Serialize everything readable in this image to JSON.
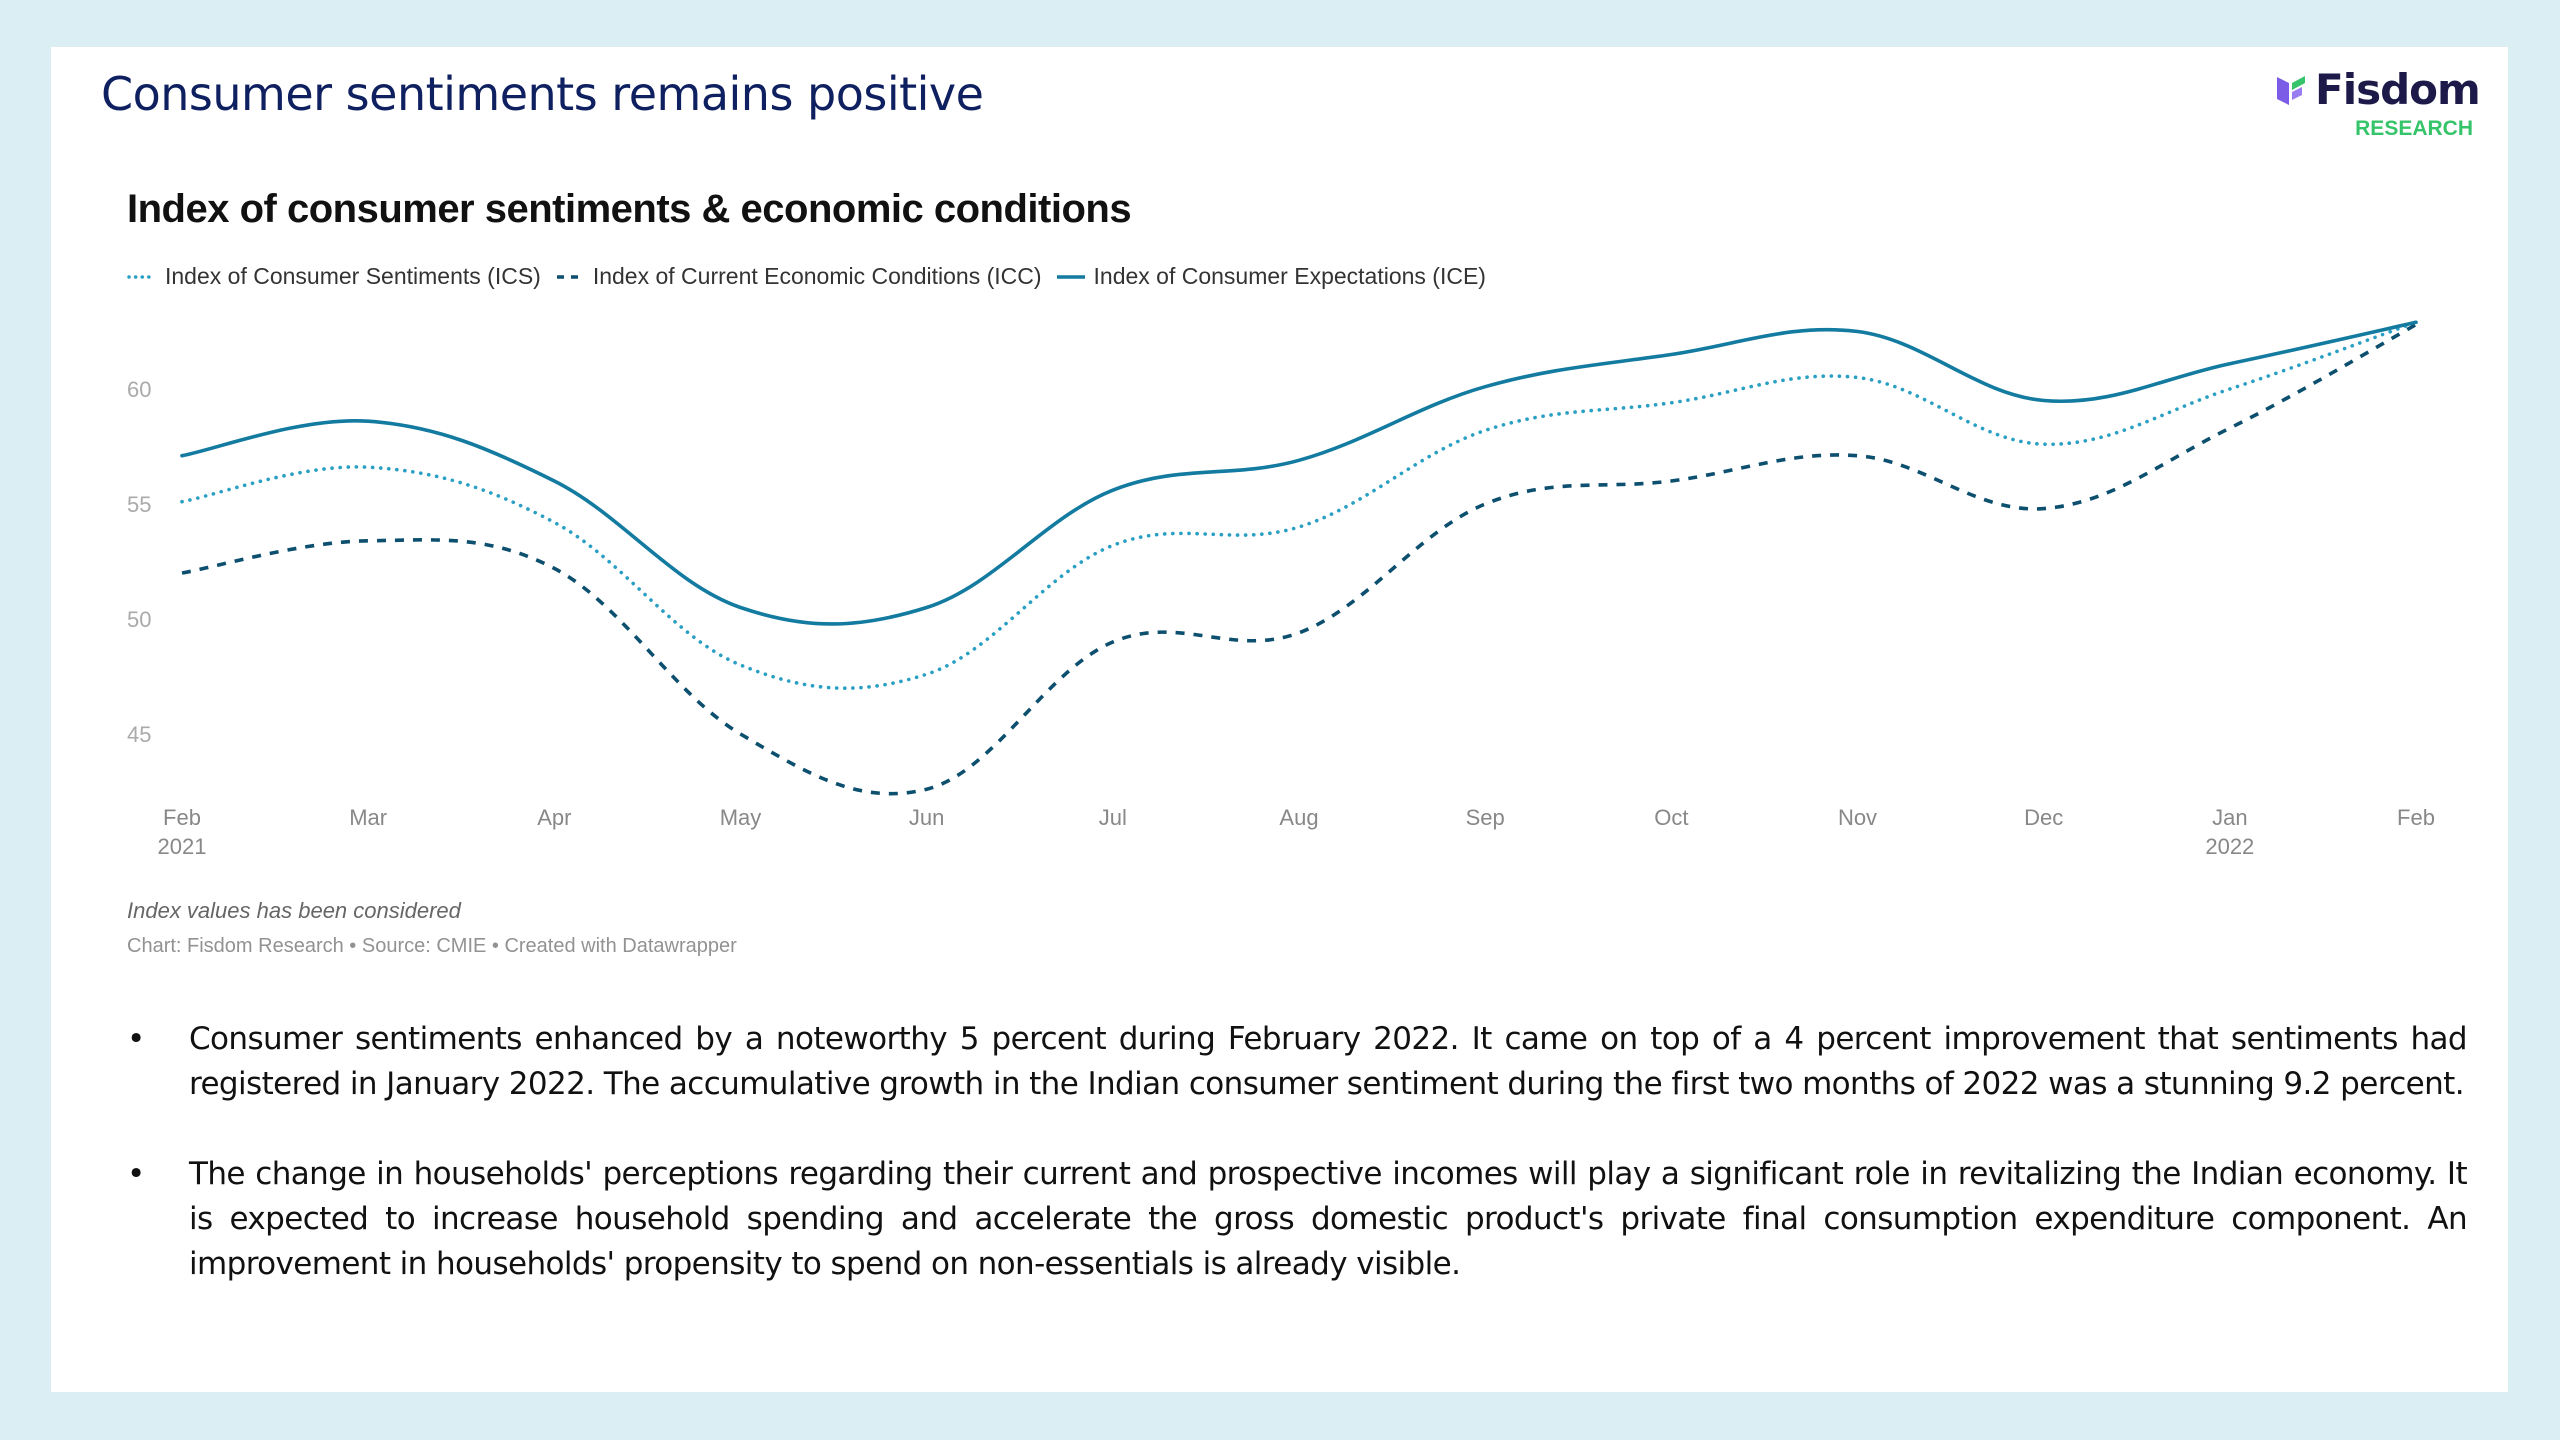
{
  "slide": {
    "title": "Consumer sentiments remains positive",
    "background_color": "#daeef4"
  },
  "logo": {
    "name": "Fisdom",
    "subtitle": "RESEARCH",
    "colors": {
      "wordmark": "#1d1a4a",
      "subtitle": "#35c46a",
      "mark_purple": "#7b5ce6",
      "mark_green": "#35c46a"
    }
  },
  "chart_data": {
    "type": "line",
    "title": "Index of consumer sentiments & economic conditions",
    "xlabel": "",
    "ylabel": "",
    "x": [
      "Feb 2021",
      "Mar 2021",
      "Apr 2021",
      "May 2021",
      "Jun 2021",
      "Jul 2021",
      "Aug 2021",
      "Sep 2021",
      "Oct 2021",
      "Nov 2021",
      "Dec 2021",
      "Jan 2022",
      "Feb 2022"
    ],
    "x_tick_labels": [
      {
        "label": "Feb",
        "sub": "2021"
      },
      {
        "label": "Mar",
        "sub": ""
      },
      {
        "label": "Apr",
        "sub": ""
      },
      {
        "label": "May",
        "sub": ""
      },
      {
        "label": "Jun",
        "sub": ""
      },
      {
        "label": "Jul",
        "sub": ""
      },
      {
        "label": "Aug",
        "sub": ""
      },
      {
        "label": "Sep",
        "sub": ""
      },
      {
        "label": "Oct",
        "sub": ""
      },
      {
        "label": "Nov",
        "sub": ""
      },
      {
        "label": "Dec",
        "sub": ""
      },
      {
        "label": "Jan",
        "sub": "2022"
      },
      {
        "label": "Feb",
        "sub": ""
      }
    ],
    "y_ticks": [
      45,
      50,
      55,
      60
    ],
    "ylim": [
      42,
      64
    ],
    "grid": false,
    "legend_position": "top-left",
    "series": [
      {
        "name": "Index of Consumer Sentiments (ICS)",
        "style": "dotted",
        "color": "#2a9fc4",
        "values": [
          55.1,
          56.6,
          54.2,
          48.0,
          47.6,
          53.2,
          54.0,
          58.2,
          59.4,
          60.5,
          57.6,
          60.0,
          62.9
        ]
      },
      {
        "name": "Index of Current Economic Conditions (ICC)",
        "style": "dashed",
        "color": "#0d4f6e",
        "values": [
          52.0,
          53.4,
          52.2,
          45.0,
          42.6,
          49.0,
          49.4,
          55.0,
          56.0,
          57.1,
          54.8,
          58.3,
          62.8
        ]
      },
      {
        "name": "Index of Consumer Expectations (ICE)",
        "style": "solid",
        "color": "#137aa0",
        "values": [
          57.1,
          58.6,
          56.0,
          50.5,
          50.5,
          55.6,
          56.9,
          60.1,
          61.5,
          62.5,
          59.5,
          61.1,
          62.9
        ]
      }
    ],
    "note": "Index values has been considered",
    "source": "Chart: Fisdom Research • Source: CMIE • Created with Datawrapper"
  },
  "bullets": [
    "Consumer sentiments enhanced by a noteworthy 5 percent during February 2022. It came on top of a 4 percent improvement that sentiments had registered in January 2022. The accumulative growth in the Indian consumer sentiment during the first two months of 2022 was a stunning 9.2 percent.",
    "The change in households' perceptions regarding their current and prospective incomes will play a significant role in revitalizing the Indian economy. It is expected to increase household spending and accelerate the gross domestic product's private final consumption expenditure component. An improvement in households' propensity to spend on non-essentials is already visible."
  ],
  "bullet_glyph": "•"
}
